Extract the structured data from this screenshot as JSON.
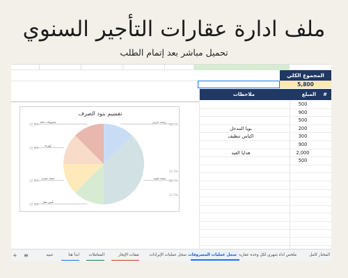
{
  "page": {
    "title": "ملف ادارة عقارات التأجير السنوي",
    "subtitle": "تحميل مباشر بعد إتمام الطلب"
  },
  "sheet": {
    "total_label": "المجموع الكلي",
    "total_value": "5,800",
    "columns": {
      "hash": "#",
      "amount": "المبلغ",
      "notes": "ملاحظات"
    },
    "rows": [
      {
        "amount": "500",
        "note": ""
      },
      {
        "amount": "900",
        "note": ""
      },
      {
        "amount": "500",
        "note": ""
      },
      {
        "amount": "200",
        "note": "بويا المدخل"
      },
      {
        "amount": "300",
        "note": "اكياس تنظيف"
      },
      {
        "amount": "900",
        "note": ""
      },
      {
        "amount": "2,000",
        "note": "هدايا العيد"
      },
      {
        "amount": "500",
        "note": ""
      }
    ]
  },
  "chart_data": {
    "type": "pie",
    "title": "تقسيم بنود الصرف",
    "slices": [
      {
        "label": "رواتب حارس",
        "percent": 12.5,
        "color": "#c9dcf6"
      },
      {
        "label": "صيانة تكييف",
        "percent": 37.5,
        "color": "#d2e1e3"
      },
      {
        "label": "تأمين عقار",
        "percent": 12.5,
        "color": "#d7ebd2"
      },
      {
        "label": "صيانة عمارة",
        "percent": 12.5,
        "color": "#fde9b9"
      },
      {
        "label": "كهرباء",
        "percent": 12.5,
        "color": "#f8dcc9"
      },
      {
        "label": "مصروفات عامة",
        "percent": 12.5,
        "color": "#e8b7ae"
      }
    ],
    "percent_labels": [
      "12.5%",
      "12.5%",
      "12.5%",
      "12.5%",
      "12.5%",
      "12.5%",
      "12.5%",
      "12.5%"
    ]
  },
  "tabs": {
    "add_icon": "+",
    "menu_icon": "≡",
    "items": [
      {
        "label": "المختار كامل",
        "color": ""
      },
      {
        "label": "ملخص اداء شهري لكل وحدة عقارية",
        "color": ""
      },
      {
        "label": "سجل عمليات المصروفات",
        "color": "#1a73e8",
        "active": true
      },
      {
        "label": "سجل عمليات الإيرادات",
        "color": ""
      },
      {
        "label": "نفقات الإيجار",
        "color": "#d93025"
      },
      {
        "label": "المعاملات",
        "color": "#188038"
      },
      {
        "label": "ابدأ هنا",
        "color": "#1a73e8"
      },
      {
        "label": "تنبيه",
        "color": ""
      }
    ]
  }
}
